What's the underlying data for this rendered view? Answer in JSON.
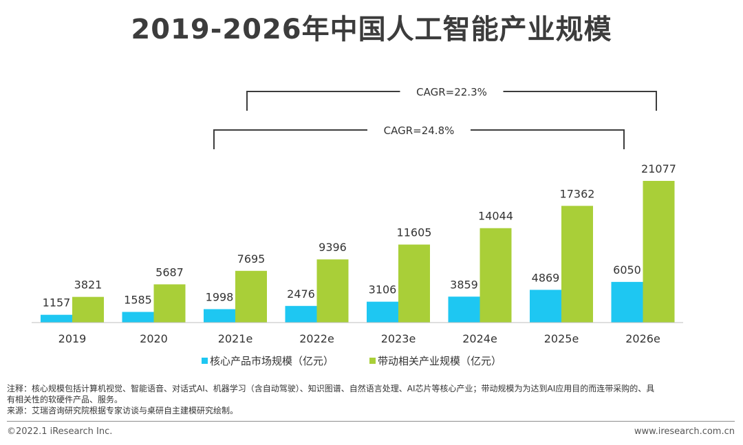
{
  "title": "2019-2026年中国人工智能产业规模",
  "chart_data": {
    "type": "bar",
    "categories": [
      "2019",
      "2020",
      "2021e",
      "2022e",
      "2023e",
      "2024e",
      "2025e",
      "2026e"
    ],
    "series": [
      {
        "name": "核心产品市场规模（亿元）",
        "color": "#1ec7f2",
        "values": [
          1157,
          1585,
          1998,
          2476,
          3106,
          3859,
          4869,
          6050
        ]
      },
      {
        "name": "带动相关产业规模（亿元）",
        "color": "#a9cf38",
        "values": [
          3821,
          5687,
          7695,
          9396,
          11605,
          14044,
          17362,
          21077
        ]
      }
    ],
    "data_labels": true,
    "grid": false,
    "legend_position": "bottom",
    "annotations": [
      {
        "text": "CAGR=22.3%",
        "from": "2021e",
        "to": "2026e"
      },
      {
        "text": "CAGR=24.8%",
        "from": "2021e",
        "to": "2025e"
      }
    ]
  },
  "notes": {
    "line1": "注释：核心规模包括计算机视觉、智能语音、对话式AI、机器学习（含自动驾驶）、知识图谱、自然语言处理、AI芯片等核心产业；带动规模为为达到AI应用目的而连带采购的、具",
    "line2": "有相关性的软硬件产品、服务。",
    "source": "来源：艾瑞咨询研究院根据专家访谈与桌研自主建模研究绘制。"
  },
  "footer": {
    "copyright": "©2022.1 iResearch Inc.",
    "website": "www.iresearch.com.cn"
  }
}
